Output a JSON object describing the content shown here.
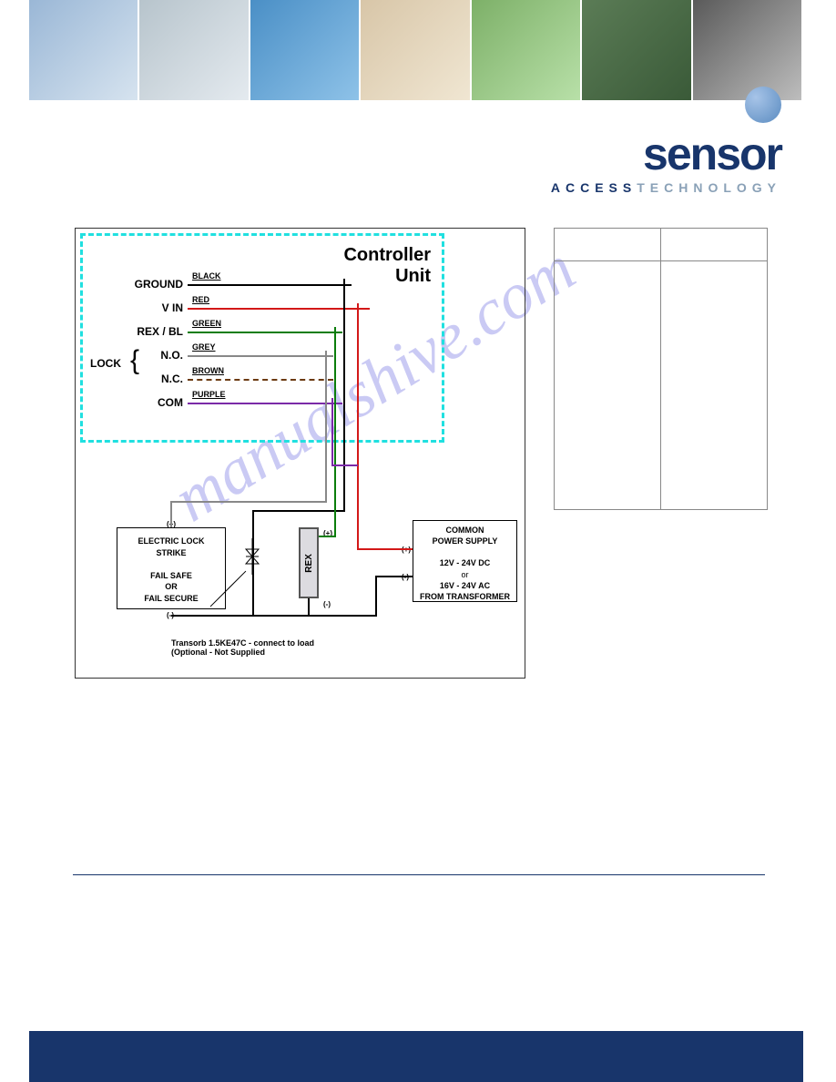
{
  "logo": {
    "word": "sensor",
    "word_color": "#18356b",
    "tag_strong": "ACCESS",
    "tag_light": "TECHNOLOGY",
    "tag_strong_color": "#18356b",
    "tag_light_color": "#8aa1b7"
  },
  "watermark": "manualshive.com",
  "diagram": {
    "title_line1": "Controller",
    "title_line2": "Unit",
    "terminals": [
      {
        "label": "GROUND",
        "wire_label": "BLACK",
        "color": "#000000",
        "wire_len": 180,
        "dash": false
      },
      {
        "label": "V IN",
        "wire_label": "RED",
        "color": "#d31818",
        "wire_len": 200,
        "dash": false
      },
      {
        "label": "REX / BL",
        "wire_label": "GREEN",
        "color": "#0b7d0b",
        "wire_len": 170,
        "dash": false
      },
      {
        "label": "N.O.",
        "wire_label": "GREY",
        "color": "#888888",
        "wire_len": 160,
        "dash": false
      },
      {
        "label": "N.C.",
        "wire_label": "BROWN",
        "color": "#6b3a11",
        "wire_len": 160,
        "dash": true
      },
      {
        "label": "COM",
        "wire_label": "PURPLE",
        "color": "#7b2aa8",
        "wire_len": 170,
        "dash": false
      }
    ],
    "lock_label": "LOCK",
    "strike": {
      "line1": "ELECTRIC LOCK",
      "line2": "STRIKE",
      "line3": "FAIL SAFE",
      "line4": "OR",
      "line5": "FAIL SECURE"
    },
    "rex_label": "REX",
    "psu": {
      "line1": "COMMON",
      "line2": "POWER SUPPLY",
      "line3": "12V - 24V DC",
      "line4": "or",
      "line5": "16V - 24V AC",
      "line6": "FROM TRANSFORMER"
    },
    "note_line1": "Transorb 1.5KE47C - connect to load",
    "note_line2": "(Optional - Not Supplied",
    "polarity_plus": "(+)",
    "polarity_minus": "(-)"
  },
  "collage_colors": [
    "#9ab7d6",
    "#b7c4cc",
    "#4a8fc6",
    "#d8c6a8",
    "#7db068",
    "#5b7c56",
    "#5a5a5a"
  ],
  "sep_color": "#18356b",
  "footer_color": "#18356b"
}
